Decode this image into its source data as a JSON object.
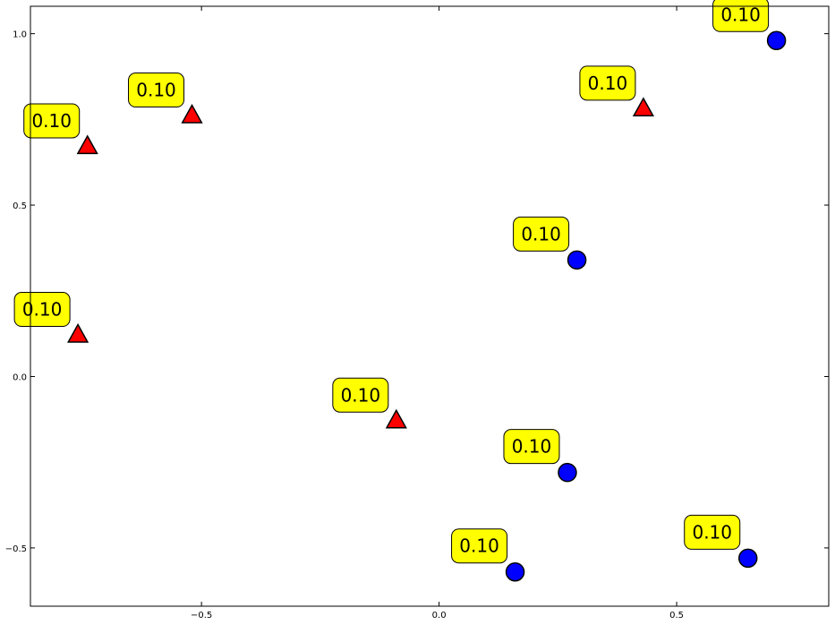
{
  "chart_data": {
    "type": "scatter",
    "title": "",
    "xlabel": "",
    "ylabel": "",
    "xlim": [
      -0.86,
      0.82
    ],
    "ylim": [
      -0.67,
      1.08
    ],
    "grid": false,
    "x_ticks": [
      -0.5,
      0.0,
      0.5
    ],
    "y_ticks": [
      -0.5,
      0.0,
      0.5,
      1.0
    ],
    "x_tick_labels": [
      "−0.5",
      "0.0",
      "0.5"
    ],
    "y_tick_labels": [
      "−0.5",
      "0.0",
      "0.5",
      "1.0"
    ],
    "colors": {
      "triangle_fill": "#ff0000",
      "circle_fill": "#0000ff",
      "label_fill": "#ffff00",
      "marker_edge": "#000000"
    },
    "series": [
      {
        "marker": "triangle",
        "x": [
          -0.74,
          -0.52,
          0.43,
          -0.76,
          -0.09
        ],
        "y": [
          0.67,
          0.76,
          0.78,
          0.12,
          -0.13
        ],
        "labels": [
          "0.10",
          "0.10",
          "0.10",
          "0.10",
          "0.10"
        ]
      },
      {
        "marker": "circle",
        "x": [
          0.71,
          0.29,
          0.27,
          0.16,
          0.65
        ],
        "y": [
          0.98,
          0.34,
          -0.28,
          -0.57,
          -0.53
        ],
        "labels": [
          "0.10",
          "0.10",
          "0.10",
          "0.10",
          "0.10"
        ]
      }
    ]
  }
}
